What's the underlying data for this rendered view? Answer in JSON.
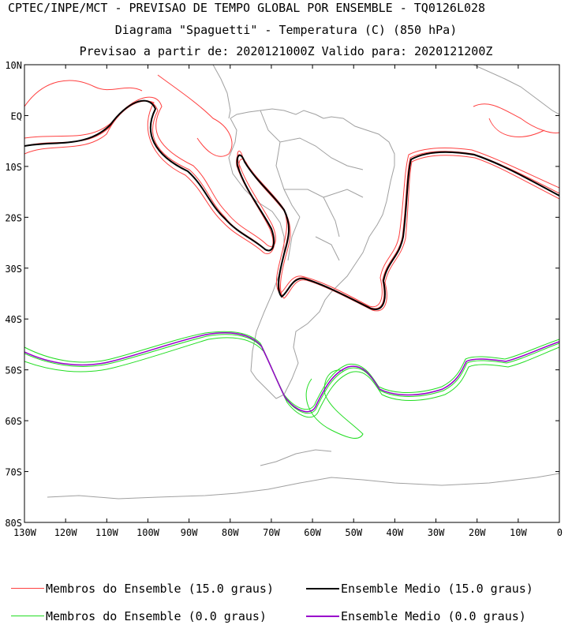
{
  "header": {
    "line1": "CPTEC/INPE/MCT - PREVISAO DE TEMPO GLOBAL POR ENSEMBLE - TQ0126L028",
    "line2": "Diagrama \"Spaguetti\" - Temperatura (C) (850 hPa)",
    "line3": "Previsao a partir de: 2020121000Z  Valido para: 2020121200Z"
  },
  "axes": {
    "lat_labels": [
      "10N",
      "EQ",
      "10S",
      "20S",
      "30S",
      "40S",
      "50S",
      "60S",
      "70S",
      "80S"
    ],
    "lon_labels": [
      "130W",
      "120W",
      "110W",
      "100W",
      "90W",
      "80W",
      "70W",
      "60W",
      "50W",
      "40W",
      "30W",
      "20W",
      "10W",
      "0"
    ]
  },
  "legend": {
    "members_15": "Membros do Ensemble (15.0 graus)",
    "mean_15": "Ensemble Medio (15.0 graus)",
    "members_0": "Membros do Ensemble (0.0 graus)",
    "mean_0": "Ensemble Medio (0.0 graus)"
  },
  "colors": {
    "members_15": "#ff4040",
    "mean_15": "#000000",
    "members_0": "#22dd22",
    "mean_0": "#9900cc",
    "coast": "#a0a0a0"
  }
}
